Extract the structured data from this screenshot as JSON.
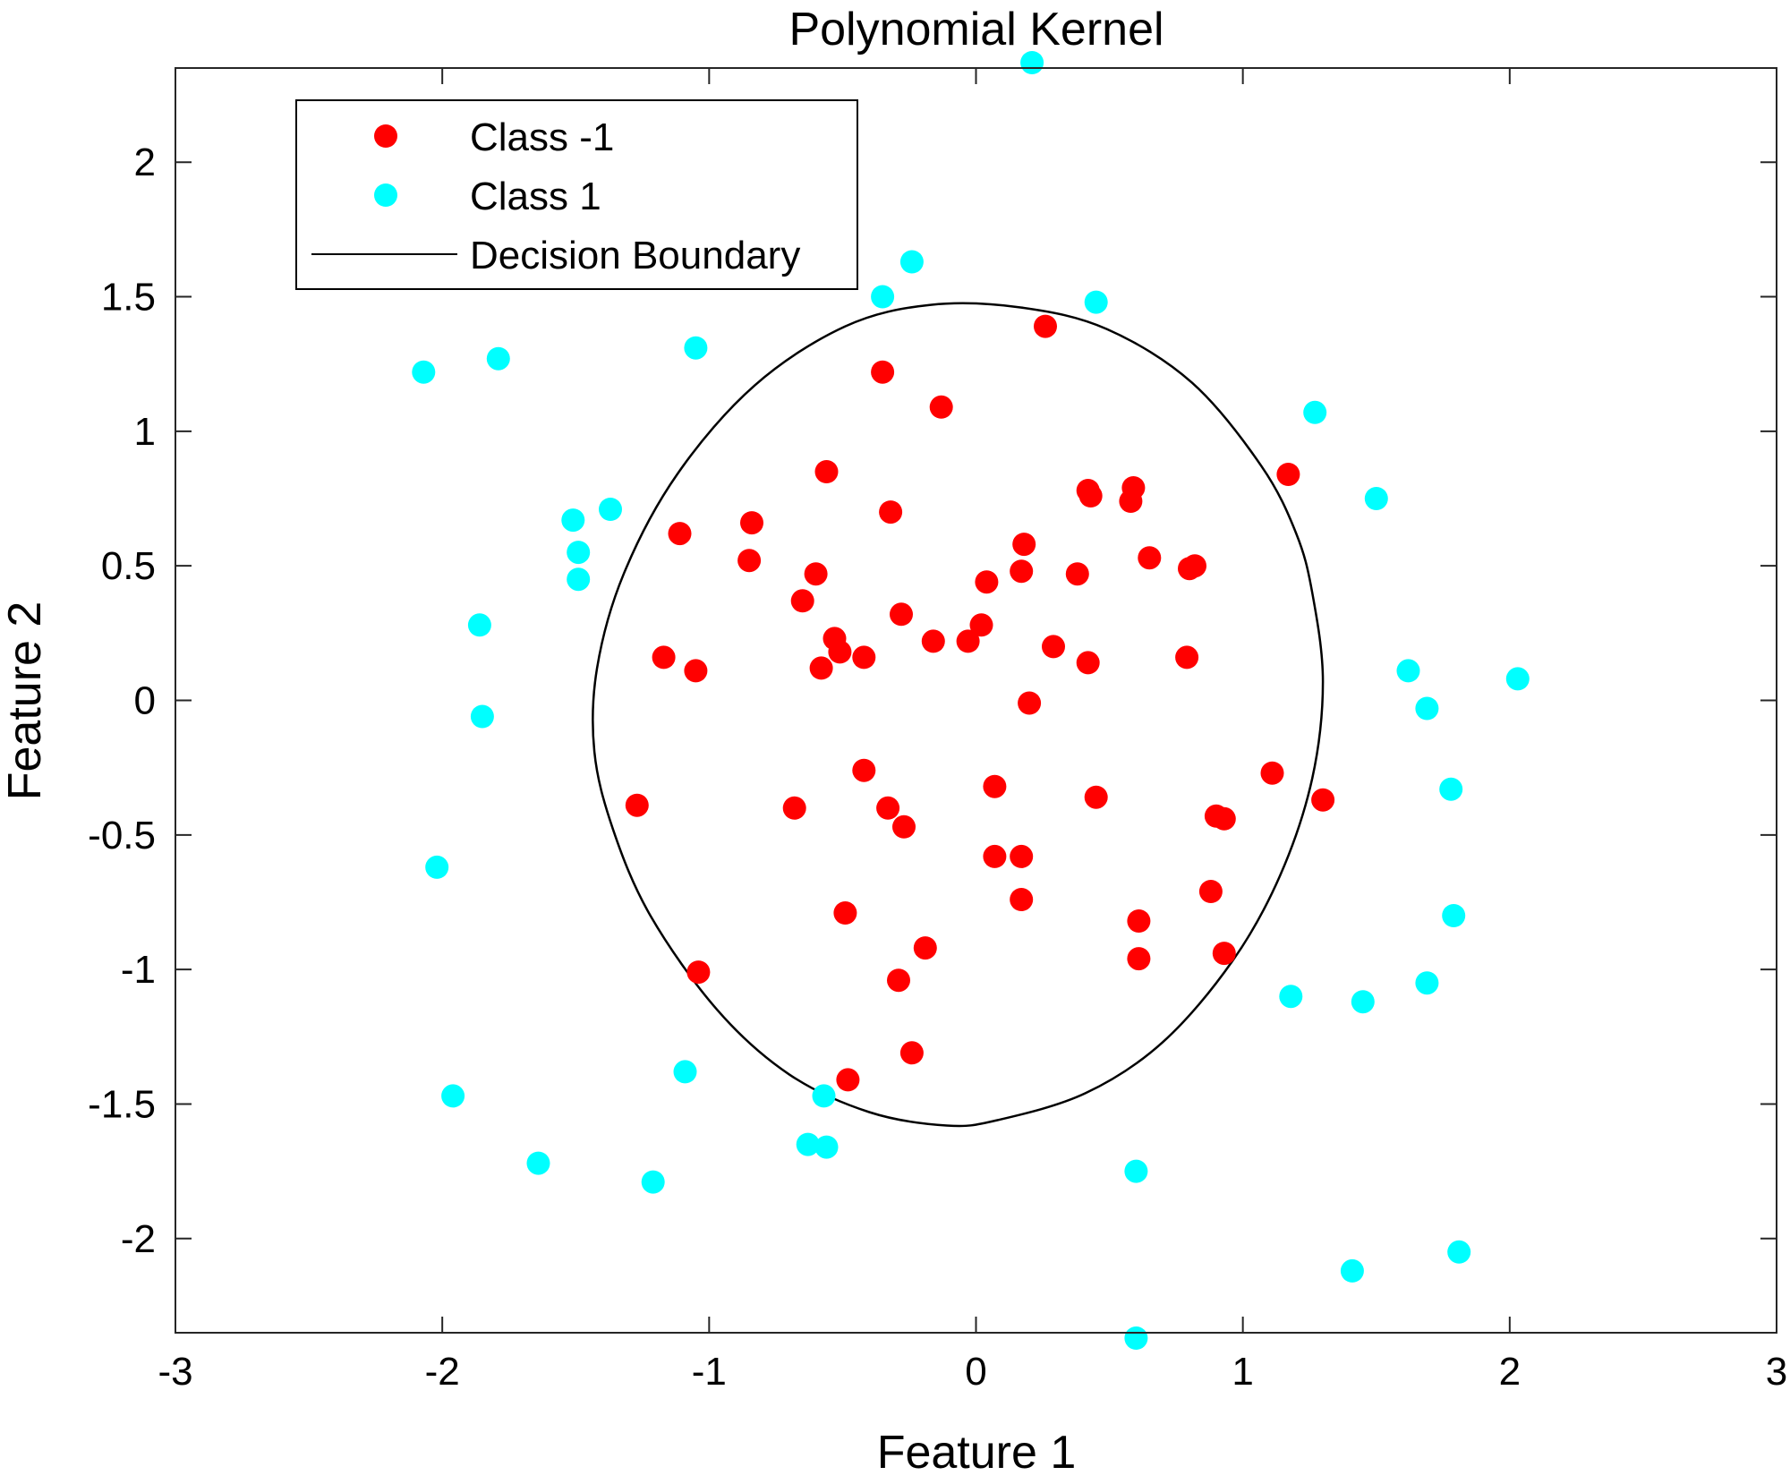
{
  "chart_data": {
    "type": "scatter",
    "title": "Polynomial Kernel",
    "xlabel": "Feature 1",
    "ylabel": "Feature 2",
    "xlim": [
      -3,
      3
    ],
    "ylim": [
      -2.35,
      2.35
    ],
    "x_ticks": [
      -3,
      -2,
      -1,
      0,
      1,
      2,
      3
    ],
    "x_tick_labels": [
      "-3",
      "-2",
      "-1",
      "0",
      "1",
      "2",
      "3"
    ],
    "y_ticks": [
      -2,
      -1.5,
      -1,
      -0.5,
      0,
      0.5,
      1,
      1.5,
      2
    ],
    "y_tick_labels": [
      "-2",
      "-1.5",
      "-1",
      "-0.5",
      "0",
      "0.5",
      "1",
      "1.5",
      "2"
    ],
    "grid": false,
    "legend": {
      "placement": "top-left",
      "entries": [
        {
          "label": "Class -1",
          "kind": "marker",
          "color": "#ff0000"
        },
        {
          "label": "Class 1",
          "kind": "marker",
          "color": "#00ffff"
        },
        {
          "label": "Decision Boundary",
          "kind": "line",
          "color": "#000000"
        }
      ]
    },
    "series": [
      {
        "name": "Class -1",
        "color": "#ff0000",
        "points": [
          [
            0.26,
            1.39
          ],
          [
            -0.35,
            1.22
          ],
          [
            -0.13,
            1.09
          ],
          [
            1.17,
            0.84
          ],
          [
            -0.56,
            0.85
          ],
          [
            0.59,
            0.79
          ],
          [
            0.42,
            0.78
          ],
          [
            0.43,
            0.76
          ],
          [
            0.58,
            0.74
          ],
          [
            -0.32,
            0.7
          ],
          [
            -1.11,
            0.62
          ],
          [
            -0.84,
            0.66
          ],
          [
            0.65,
            0.53
          ],
          [
            0.8,
            0.49
          ],
          [
            0.82,
            0.5
          ],
          [
            0.18,
            0.58
          ],
          [
            -0.85,
            0.52
          ],
          [
            0.17,
            0.48
          ],
          [
            -0.6,
            0.47
          ],
          [
            0.38,
            0.47
          ],
          [
            0.04,
            0.44
          ],
          [
            -0.65,
            0.37
          ],
          [
            -0.28,
            0.32
          ],
          [
            0.02,
            0.28
          ],
          [
            -0.53,
            0.23
          ],
          [
            -0.51,
            0.18
          ],
          [
            -0.42,
            0.16
          ],
          [
            -0.16,
            0.22
          ],
          [
            -0.03,
            0.22
          ],
          [
            0.29,
            0.2
          ],
          [
            0.42,
            0.14
          ],
          [
            0.79,
            0.16
          ],
          [
            -1.17,
            0.16
          ],
          [
            -1.05,
            0.11
          ],
          [
            -0.58,
            0.12
          ],
          [
            0.2,
            -0.01
          ],
          [
            -0.42,
            -0.26
          ],
          [
            0.07,
            -0.32
          ],
          [
            1.11,
            -0.27
          ],
          [
            0.45,
            -0.36
          ],
          [
            1.3,
            -0.37
          ],
          [
            -1.27,
            -0.39
          ],
          [
            -0.68,
            -0.4
          ],
          [
            -0.33,
            -0.4
          ],
          [
            -0.27,
            -0.47
          ],
          [
            0.9,
            -0.43
          ],
          [
            0.93,
            -0.44
          ],
          [
            0.07,
            -0.58
          ],
          [
            0.17,
            -0.58
          ],
          [
            0.88,
            -0.71
          ],
          [
            0.17,
            -0.74
          ],
          [
            -0.49,
            -0.79
          ],
          [
            0.61,
            -0.82
          ],
          [
            -0.19,
            -0.92
          ],
          [
            0.93,
            -0.94
          ],
          [
            0.61,
            -0.96
          ],
          [
            -1.04,
            -1.01
          ],
          [
            -0.29,
            -1.04
          ],
          [
            -0.24,
            -1.31
          ],
          [
            -0.48,
            -1.41
          ]
        ]
      },
      {
        "name": "Class 1",
        "color": "#00ffff",
        "points": [
          [
            0.21,
            2.37
          ],
          [
            -0.24,
            1.63
          ],
          [
            -0.35,
            1.5
          ],
          [
            0.45,
            1.48
          ],
          [
            -2.07,
            1.22
          ],
          [
            -1.79,
            1.27
          ],
          [
            -1.05,
            1.31
          ],
          [
            1.27,
            1.07
          ],
          [
            1.5,
            0.75
          ],
          [
            -1.37,
            0.71
          ],
          [
            -1.51,
            0.67
          ],
          [
            -1.49,
            0.55
          ],
          [
            -1.49,
            0.45
          ],
          [
            -1.86,
            0.28
          ],
          [
            1.62,
            0.11
          ],
          [
            2.03,
            0.08
          ],
          [
            -1.85,
            -0.06
          ],
          [
            1.69,
            -0.03
          ],
          [
            1.78,
            -0.33
          ],
          [
            -2.02,
            -0.62
          ],
          [
            1.79,
            -0.8
          ],
          [
            1.18,
            -1.1
          ],
          [
            1.45,
            -1.12
          ],
          [
            1.69,
            -1.05
          ],
          [
            -1.09,
            -1.38
          ],
          [
            -0.57,
            -1.47
          ],
          [
            -1.96,
            -1.47
          ],
          [
            -0.63,
            -1.65
          ],
          [
            -0.56,
            -1.66
          ],
          [
            -1.64,
            -1.72
          ],
          [
            -1.21,
            -1.79
          ],
          [
            0.6,
            -1.75
          ],
          [
            1.41,
            -2.12
          ],
          [
            1.81,
            -2.05
          ],
          [
            0.6,
            -2.37
          ]
        ]
      }
    ],
    "decision_boundary": {
      "name": "Decision Boundary",
      "color": "#000000",
      "shape": "closed-curve",
      "points": [
        [
          0.17,
          1.46
        ],
        [
          0.49,
          1.38
        ],
        [
          0.81,
          1.18
        ],
        [
          1.07,
          0.87
        ],
        [
          1.2,
          0.62
        ],
        [
          1.26,
          0.4
        ],
        [
          1.3,
          0.07
        ],
        [
          1.26,
          -0.29
        ],
        [
          1.14,
          -0.65
        ],
        [
          0.96,
          -0.97
        ],
        [
          0.7,
          -1.27
        ],
        [
          0.41,
          -1.46
        ],
        [
          0.08,
          -1.56
        ],
        [
          -0.11,
          -1.58
        ],
        [
          -0.4,
          -1.53
        ],
        [
          -0.7,
          -1.39
        ],
        [
          -0.97,
          -1.15
        ],
        [
          -1.22,
          -0.8
        ],
        [
          -1.36,
          -0.48
        ],
        [
          -1.43,
          -0.19
        ],
        [
          -1.42,
          0.12
        ],
        [
          -1.32,
          0.47
        ],
        [
          -1.12,
          0.84
        ],
        [
          -0.83,
          1.17
        ],
        [
          -0.49,
          1.39
        ],
        [
          -0.17,
          1.47
        ]
      ]
    }
  }
}
